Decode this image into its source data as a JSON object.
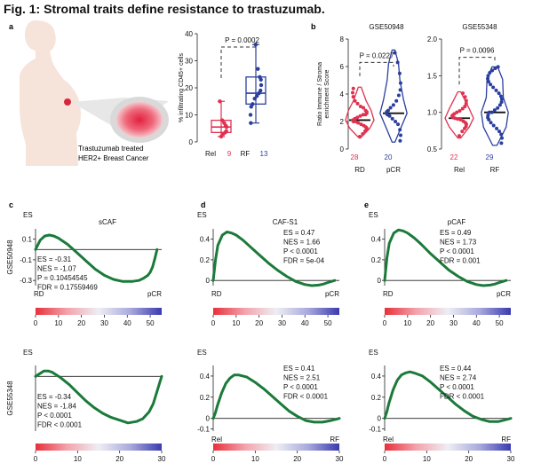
{
  "figure": {
    "title": "Fig. 1: Stromal traits define resistance to trastuzumab."
  },
  "colors": {
    "relapse": "#e0314f",
    "responder": "#2a3f9e",
    "gsea_line": "#1b7a3a",
    "body": "#f6e3da",
    "tumor": "#e02a4a"
  },
  "panel_a": {
    "label": "a",
    "caption_line1": "Trastuzumab treated",
    "caption_line2": "HER2+ Breast Cancer",
    "icons": [
      "patient-silhouette-icon",
      "magnified-tumor-icon"
    ]
  },
  "panel_b": {
    "label": "b"
  },
  "panels_cde": {
    "labels": [
      "c",
      "d",
      "e"
    ]
  },
  "chart_data": [
    {
      "id": "a-box",
      "type": "box",
      "title": "",
      "ylabel": "% infiltrating CD45+ cells",
      "ylim": [
        0,
        40
      ],
      "yticks": [
        "0",
        "10",
        "20",
        "30",
        "40"
      ],
      "pvalue": "P = 0.0002",
      "groups": [
        {
          "name": "Rel",
          "n": "9",
          "color": "#e0314f",
          "min": 2,
          "q1": 3.5,
          "median": 5.5,
          "q3": 8,
          "max": 15,
          "points": [
            2,
            3,
            3.5,
            4,
            5.5,
            6,
            7,
            8,
            15
          ]
        },
        {
          "name": "RF",
          "n": "13",
          "color": "#2a3f9e",
          "min": 7,
          "q1": 14,
          "median": 18,
          "q3": 24,
          "max": 36,
          "points": [
            7,
            10,
            13,
            14,
            16,
            17,
            18,
            19,
            21,
            23,
            24,
            27,
            36
          ]
        }
      ]
    },
    {
      "id": "b-violin-1",
      "type": "violin",
      "title": "GSE50948",
      "ylabel": "Ratio Immune / Stroma enrichment Score",
      "ylim": [
        0,
        8
      ],
      "yticks": [
        "0",
        "2",
        "4",
        "6",
        "8"
      ],
      "pvalue": "P = 0.0227",
      "groups": [
        {
          "name": "RD",
          "n": "28",
          "color": "#e0314f",
          "median": 2.1,
          "min": 0.8,
          "max": 4.5,
          "points": [
            0.9,
            1.1,
            1.3,
            1.4,
            1.5,
            1.6,
            1.7,
            1.8,
            1.9,
            2.0,
            2.0,
            2.1,
            2.1,
            2.2,
            2.3,
            2.4,
            2.5,
            2.5,
            2.6,
            2.7,
            2.8,
            3.0,
            3.1,
            3.3,
            3.5,
            3.8,
            4.1,
            4.4
          ],
          "profile": [
            [
              0.8,
              0.05
            ],
            [
              1.5,
              0.7
            ],
            [
              2.1,
              1.0
            ],
            [
              2.8,
              0.8
            ],
            [
              3.5,
              0.45
            ],
            [
              4.5,
              0.1
            ]
          ]
        },
        {
          "name": "pCR",
          "n": "20",
          "color": "#2a3f9e",
          "median": 2.6,
          "min": 0.5,
          "max": 7.2,
          "points": [
            0.6,
            1.0,
            1.4,
            1.8,
            2.0,
            2.2,
            2.4,
            2.5,
            2.6,
            2.7,
            2.8,
            3.0,
            3.2,
            3.5,
            3.9,
            4.3,
            4.8,
            5.5,
            6.3,
            7.0
          ],
          "profile": [
            [
              0.5,
              0.1
            ],
            [
              1.5,
              0.5
            ],
            [
              2.6,
              0.95
            ],
            [
              3.6,
              0.7
            ],
            [
              5.0,
              0.45
            ],
            [
              6.2,
              0.35
            ],
            [
              7.2,
              0.1
            ]
          ]
        }
      ]
    },
    {
      "id": "b-violin-2",
      "type": "violin",
      "title": "GSE55348",
      "ylabel": "",
      "ylim": [
        0.5,
        2.0
      ],
      "yticks": [
        "0.5",
        "1.0",
        "1.5",
        "2.0"
      ],
      "pvalue": "P = 0.0096",
      "groups": [
        {
          "name": "Rel",
          "n": "22",
          "color": "#e0314f",
          "median": 0.92,
          "min": 0.65,
          "max": 1.28,
          "points": [
            0.68,
            0.74,
            0.78,
            0.81,
            0.84,
            0.86,
            0.88,
            0.9,
            0.91,
            0.92,
            0.93,
            0.95,
            0.96,
            0.98,
            1.0,
            1.02,
            1.05,
            1.08,
            1.12,
            1.16,
            1.21,
            1.26
          ],
          "profile": [
            [
              0.65,
              0.1
            ],
            [
              0.8,
              0.7
            ],
            [
              0.92,
              1.0
            ],
            [
              1.05,
              0.7
            ],
            [
              1.28,
              0.1
            ]
          ]
        },
        {
          "name": "RF",
          "n": "29",
          "color": "#2a3f9e",
          "median": 1.0,
          "min": 0.55,
          "max": 1.62,
          "points": [
            0.58,
            0.65,
            0.7,
            0.74,
            0.78,
            0.82,
            0.86,
            0.9,
            0.93,
            0.96,
            1.0,
            1.0,
            1.03,
            1.06,
            1.1,
            1.14,
            1.18,
            1.22,
            1.26,
            1.3,
            1.34,
            1.38,
            1.42,
            1.46,
            1.5,
            1.54,
            1.57,
            1.6,
            1.62
          ],
          "profile": [
            [
              0.55,
              0.15
            ],
            [
              0.8,
              0.8
            ],
            [
              1.0,
              0.95
            ],
            [
              1.2,
              0.6
            ],
            [
              1.45,
              0.55
            ],
            [
              1.62,
              0.2
            ]
          ]
        }
      ]
    },
    {
      "id": "c-top",
      "type": "line",
      "title": "sCAF",
      "ylabel": "ES",
      "row_label": "GSE50948",
      "xlim": [
        0,
        55
      ],
      "ylim": [
        -0.35,
        0.2
      ],
      "yticks": [
        {
          "v": 0.1,
          "t": "0.1"
        },
        {
          "v": -0.1,
          "t": "-0.1"
        },
        {
          "v": -0.3,
          "t": "-0.3"
        }
      ],
      "xticks": [
        "0",
        "10",
        "20",
        "30",
        "40",
        "50"
      ],
      "left_label": "RD",
      "right_label": "pCR",
      "stats": [
        "ES = -0.31",
        "NES = -1.07",
        "P = 0.10454545",
        "FDR = 0.17559469"
      ],
      "x": [
        0,
        2,
        4,
        6,
        8,
        10,
        14,
        18,
        22,
        26,
        30,
        34,
        38,
        42,
        45,
        47,
        49,
        50,
        51,
        52,
        53
      ],
      "y": [
        0,
        0.09,
        0.13,
        0.14,
        0.13,
        0.11,
        0.05,
        -0.03,
        -0.11,
        -0.19,
        -0.25,
        -0.29,
        -0.31,
        -0.31,
        -0.3,
        -0.28,
        -0.25,
        -0.22,
        -0.17,
        -0.09,
        0
      ]
    },
    {
      "id": "d-top",
      "type": "line",
      "title": "CAF-S1",
      "ylabel": "ES",
      "row_label": "",
      "xlim": [
        0,
        55
      ],
      "ylim": [
        -0.05,
        0.5
      ],
      "yticks": [
        {
          "v": 0.4,
          "t": "0.4"
        },
        {
          "v": 0.2,
          "t": "0.2"
        },
        {
          "v": 0,
          "t": "0"
        }
      ],
      "xticks": [
        "0",
        "10",
        "20",
        "30",
        "40",
        "50"
      ],
      "left_label": "RD",
      "right_label": "pCR",
      "stats": [
        "ES = 0.47",
        "NES = 1.66",
        "P < 0.0001",
        "FDR = 5e-04"
      ],
      "x": [
        0,
        1,
        2,
        4,
        6,
        8,
        10,
        13,
        16,
        20,
        24,
        28,
        32,
        36,
        40,
        43,
        46,
        48,
        50,
        51.5,
        53
      ],
      "y": [
        0,
        0.2,
        0.34,
        0.44,
        0.47,
        0.46,
        0.44,
        0.39,
        0.33,
        0.25,
        0.17,
        0.1,
        0.04,
        -0.01,
        -0.04,
        -0.05,
        -0.045,
        -0.035,
        -0.02,
        -0.01,
        0
      ]
    },
    {
      "id": "e-top",
      "type": "line",
      "title": "pCAF",
      "ylabel": "ES",
      "row_label": "",
      "xlim": [
        0,
        55
      ],
      "ylim": [
        -0.05,
        0.5
      ],
      "yticks": [
        {
          "v": 0.4,
          "t": "0.4"
        },
        {
          "v": 0.2,
          "t": "0.2"
        },
        {
          "v": 0,
          "t": "0"
        }
      ],
      "xticks": [
        "0",
        "10",
        "20",
        "30",
        "40",
        "50"
      ],
      "left_label": "RD",
      "right_label": "pCR",
      "stats": [
        "ES = 0.49",
        "NES = 1.73",
        "P < 0.0001",
        "FDR = 0.001"
      ],
      "x": [
        0,
        1,
        2,
        4,
        6,
        8,
        10,
        13,
        16,
        20,
        24,
        28,
        32,
        36,
        40,
        43,
        46,
        48,
        50,
        51.5,
        53
      ],
      "y": [
        0,
        0.22,
        0.36,
        0.46,
        0.49,
        0.48,
        0.46,
        0.41,
        0.35,
        0.26,
        0.18,
        0.1,
        0.04,
        -0.01,
        -0.04,
        -0.05,
        -0.045,
        -0.035,
        -0.02,
        -0.01,
        0
      ]
    },
    {
      "id": "c-bottom",
      "type": "line",
      "title": "",
      "ylabel": "ES",
      "row_label": "GSE55348",
      "xlim": [
        0,
        30
      ],
      "ylim": [
        -0.4,
        0.08
      ],
      "yticks": [],
      "xticks": [
        "0",
        "10",
        "20",
        "30"
      ],
      "left_label": "",
      "right_label": "",
      "stats": [
        "ES = -0.34",
        "NES = -1.84",
        "P < 0.0001",
        "FDR < 0.0001"
      ],
      "x": [
        0,
        1,
        2,
        3,
        4,
        6,
        8,
        10,
        12,
        14,
        16,
        18,
        20,
        22,
        24,
        25.5,
        27,
        28,
        28.8,
        29.5,
        30
      ],
      "y": [
        0,
        0.02,
        0.04,
        0.04,
        0.03,
        -0.01,
        -0.06,
        -0.12,
        -0.18,
        -0.23,
        -0.27,
        -0.3,
        -0.32,
        -0.34,
        -0.33,
        -0.31,
        -0.26,
        -0.2,
        -0.12,
        -0.05,
        0
      ]
    },
    {
      "id": "d-bottom",
      "type": "line",
      "title": "",
      "ylabel": "ES",
      "row_label": "",
      "xlim": [
        0,
        30
      ],
      "ylim": [
        -0.12,
        0.5
      ],
      "yticks": [
        {
          "v": 0.4,
          "t": "0.4"
        },
        {
          "v": 0.2,
          "t": "0.2"
        },
        {
          "v": 0,
          "t": "0"
        },
        {
          "v": -0.1,
          "t": "-0.1"
        }
      ],
      "xticks": [
        "0",
        "10",
        "20",
        "30"
      ],
      "left_label": "Rel",
      "right_label": "RF",
      "stats": [
        "ES = 0.41",
        "NES = 2.51",
        "P < 0.0001",
        "FDR < 0.0001"
      ],
      "x": [
        0,
        0.5,
        1,
        2,
        3,
        4,
        5,
        6,
        8,
        10,
        12,
        14,
        16,
        18,
        20,
        22,
        24,
        26,
        28,
        29,
        30
      ],
      "y": [
        0,
        0.05,
        0.12,
        0.24,
        0.33,
        0.38,
        0.41,
        0.41,
        0.39,
        0.34,
        0.28,
        0.21,
        0.14,
        0.07,
        0.02,
        -0.02,
        -0.035,
        -0.035,
        -0.02,
        -0.01,
        0
      ]
    },
    {
      "id": "e-bottom",
      "type": "line",
      "title": "",
      "ylabel": "ES",
      "row_label": "",
      "xlim": [
        0,
        30
      ],
      "ylim": [
        -0.12,
        0.5
      ],
      "yticks": [
        {
          "v": 0.4,
          "t": "0.4"
        },
        {
          "v": 0.2,
          "t": "0.2"
        },
        {
          "v": 0,
          "t": "0"
        },
        {
          "v": -0.1,
          "t": "-0.1"
        }
      ],
      "xticks": [
        "0",
        "10",
        "20",
        "30"
      ],
      "left_label": "Rel",
      "right_label": "RF",
      "stats": [
        "ES = 0.44",
        "NES = 2.74",
        "P < 0.0001",
        "FDR < 0.0001"
      ],
      "x": [
        0,
        0.5,
        1,
        2,
        3,
        4,
        5,
        6,
        7,
        9,
        11,
        13,
        15,
        17,
        19,
        21,
        23,
        25,
        27,
        29,
        30
      ],
      "y": [
        0,
        0.06,
        0.14,
        0.27,
        0.36,
        0.41,
        0.43,
        0.44,
        0.43,
        0.4,
        0.34,
        0.27,
        0.2,
        0.13,
        0.07,
        0.02,
        -0.01,
        -0.03,
        -0.03,
        -0.01,
        0
      ]
    }
  ]
}
